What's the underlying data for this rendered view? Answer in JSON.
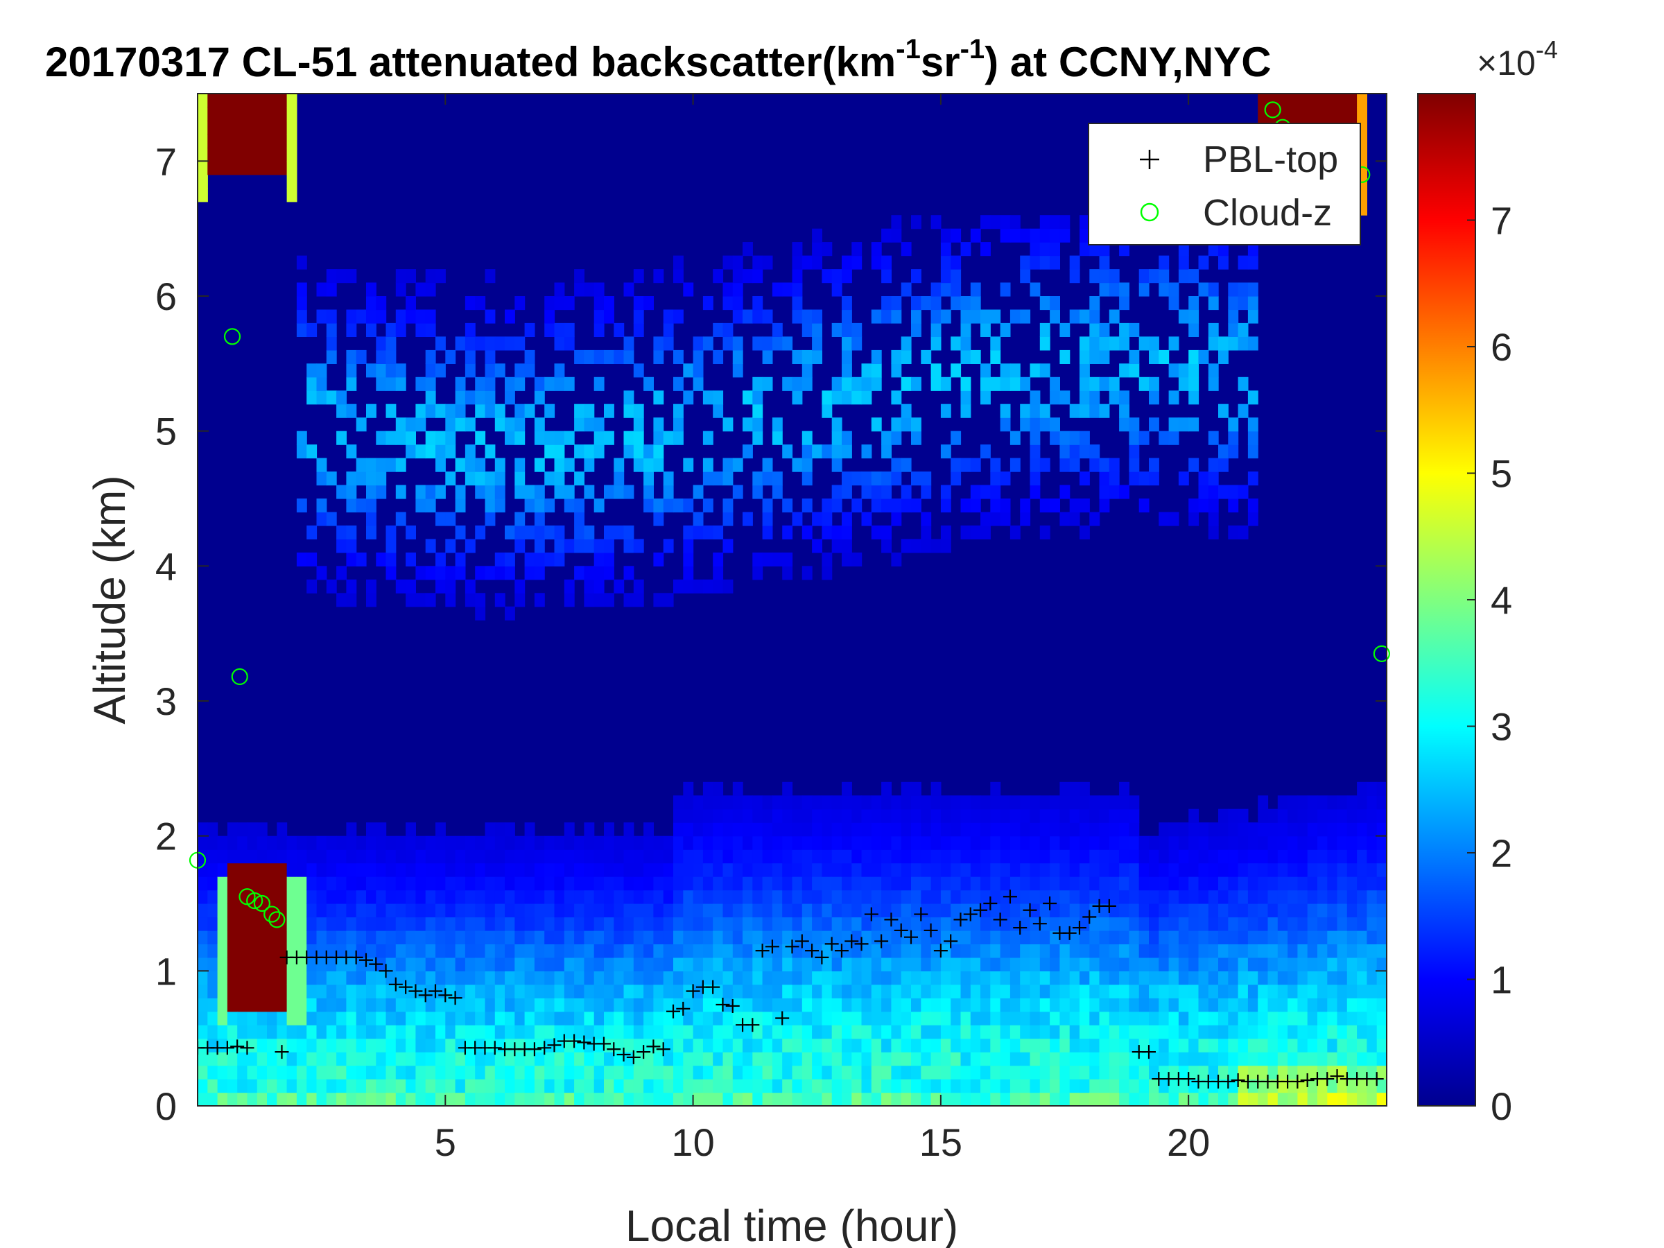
{
  "chart_data": {
    "type": "heatmap",
    "title": {
      "main": "20170317  CL-51 attenuated backscatter(km",
      "sup1": "-1",
      "mid": "sr",
      "sup2": "-1",
      "tail": ") at CCNY,NYC"
    },
    "xlabel": "Local time (hour)",
    "ylabel": "Altitude (km)",
    "xlim": [
      0,
      24
    ],
    "ylim": [
      0,
      7.5
    ],
    "xticks": [
      5,
      10,
      15,
      20
    ],
    "yticks": [
      0,
      1,
      2,
      3,
      4,
      5,
      6,
      7
    ],
    "colorbar": {
      "colormap": "jet",
      "range": [
        0,
        0.0008
      ],
      "ticks": [
        0,
        1,
        2,
        3,
        4,
        5,
        6,
        7
      ],
      "exponent_base": "×10",
      "exponent_power": "-4"
    },
    "legend": {
      "location": "top-right",
      "entries": [
        {
          "label": "PBL-top",
          "marker": "+",
          "color": "#000000"
        },
        {
          "label": "Cloud-z",
          "marker": "o",
          "color": "#00ff00"
        }
      ]
    },
    "series": [
      {
        "name": "PBL-top",
        "x": [
          0.0,
          0.2,
          0.4,
          0.6,
          0.8,
          1.0,
          1.7,
          1.8,
          2.0,
          2.2,
          2.4,
          2.6,
          2.8,
          3.0,
          3.2,
          3.4,
          3.6,
          3.8,
          4.0,
          4.2,
          4.4,
          4.6,
          4.8,
          5.0,
          5.2,
          5.4,
          5.6,
          5.8,
          6.0,
          6.2,
          6.4,
          6.6,
          6.8,
          7.0,
          7.2,
          7.4,
          7.6,
          7.8,
          8.0,
          8.2,
          8.4,
          8.6,
          8.8,
          9.0,
          9.2,
          9.4,
          9.6,
          9.8,
          10.0,
          10.2,
          10.4,
          10.6,
          10.8,
          11.0,
          11.2,
          11.4,
          11.6,
          11.8,
          12.0,
          12.2,
          12.4,
          12.6,
          12.8,
          13.0,
          13.2,
          13.4,
          13.6,
          13.8,
          14.0,
          14.2,
          14.4,
          14.6,
          14.8,
          15.0,
          15.2,
          15.4,
          15.6,
          15.8,
          16.0,
          16.2,
          16.4,
          16.6,
          16.8,
          17.0,
          17.2,
          17.4,
          17.6,
          17.8,
          18.0,
          18.2,
          18.4,
          19.0,
          19.2,
          19.4,
          19.6,
          19.8,
          20.0,
          20.2,
          20.4,
          20.6,
          20.8,
          21.0,
          21.2,
          21.4,
          21.6,
          21.8,
          22.0,
          22.2,
          22.4,
          22.6,
          22.8,
          23.0,
          23.2,
          23.4,
          23.6,
          23.8
        ],
        "y": [
          0.43,
          0.43,
          0.43,
          0.43,
          0.44,
          0.43,
          0.4,
          1.1,
          1.1,
          1.1,
          1.1,
          1.1,
          1.1,
          1.1,
          1.1,
          1.08,
          1.05,
          1.0,
          0.9,
          0.88,
          0.85,
          0.82,
          0.85,
          0.82,
          0.8,
          0.43,
          0.43,
          0.43,
          0.43,
          0.42,
          0.42,
          0.42,
          0.42,
          0.43,
          0.45,
          0.48,
          0.48,
          0.47,
          0.46,
          0.46,
          0.42,
          0.38,
          0.36,
          0.4,
          0.44,
          0.42,
          0.7,
          0.72,
          0.85,
          0.88,
          0.88,
          0.75,
          0.74,
          0.6,
          0.6,
          1.15,
          1.18,
          0.65,
          1.18,
          1.22,
          1.15,
          1.1,
          1.2,
          1.15,
          1.22,
          1.2,
          1.42,
          1.22,
          1.38,
          1.3,
          1.25,
          1.42,
          1.3,
          1.15,
          1.22,
          1.38,
          1.42,
          1.45,
          1.5,
          1.38,
          1.55,
          1.32,
          1.45,
          1.35,
          1.5,
          1.28,
          1.28,
          1.32,
          1.4,
          1.48,
          1.48,
          0.4,
          0.4,
          0.2,
          0.2,
          0.2,
          0.2,
          0.18,
          0.18,
          0.18,
          0.18,
          0.19,
          0.18,
          0.18,
          0.18,
          0.18,
          0.18,
          0.18,
          0.19,
          0.2,
          0.2,
          0.22,
          0.2,
          0.2,
          0.2,
          0.2
        ]
      },
      {
        "name": "Cloud-z",
        "x": [
          0.0,
          0.7,
          0.85,
          1.0,
          1.15,
          1.3,
          1.5,
          1.6,
          21.7,
          21.9,
          23.5,
          23.9
        ],
        "y": [
          1.82,
          5.7,
          3.18,
          1.55,
          1.52,
          1.5,
          1.42,
          1.38,
          7.38,
          7.25,
          6.9,
          3.35
        ]
      }
    ]
  }
}
